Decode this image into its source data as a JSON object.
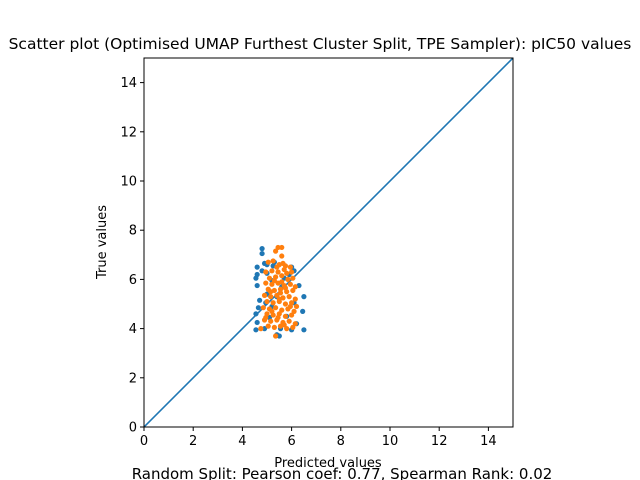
{
  "chart_data": {
    "type": "scatter",
    "title": "Scatter plot (Optimised UMAP Furthest Cluster Split, TPE Sampler): pIC50 values",
    "xlabel": "Predicted values",
    "ylabel": "True values",
    "caption": "Random Split: Pearson coef: 0.77, Spearman Rank: 0.02",
    "xlim": [
      0,
      15
    ],
    "ylim": [
      0,
      15
    ],
    "xticks": [
      "0",
      "2",
      "4",
      "6",
      "8",
      "10",
      "12",
      "14"
    ],
    "yticks": [
      "0",
      "2",
      "4",
      "6",
      "8",
      "10",
      "12",
      "14"
    ],
    "grid": false,
    "legend": "none",
    "reference_line": {
      "x": [
        0,
        15
      ],
      "y": [
        0,
        15
      ],
      "color": "#1f77b4"
    },
    "series": [
      {
        "color": "#1f77b4",
        "points": [
          [
            4.8,
            7.25
          ],
          [
            4.8,
            7.05
          ],
          [
            4.9,
            6.65
          ],
          [
            5.0,
            6.6
          ],
          [
            5.3,
            6.7
          ],
          [
            4.6,
            6.5
          ],
          [
            4.6,
            6.2
          ],
          [
            4.55,
            6.05
          ],
          [
            4.6,
            5.75
          ],
          [
            4.7,
            5.15
          ],
          [
            4.65,
            4.85
          ],
          [
            4.55,
            4.6
          ],
          [
            4.6,
            4.25
          ],
          [
            4.55,
            3.95
          ],
          [
            4.9,
            4.0
          ],
          [
            5.0,
            6.25
          ],
          [
            5.2,
            5.95
          ],
          [
            5.4,
            3.75
          ],
          [
            5.5,
            3.7
          ],
          [
            5.9,
            6.2
          ],
          [
            6.0,
            6.5
          ],
          [
            6.1,
            6.35
          ],
          [
            6.3,
            5.75
          ],
          [
            6.5,
            5.3
          ],
          [
            6.45,
            4.7
          ],
          [
            6.5,
            3.95
          ],
          [
            6.2,
            4.2
          ],
          [
            6.1,
            5.05
          ],
          [
            5.8,
            4.5
          ],
          [
            5.6,
            5.7
          ],
          [
            5.4,
            5.3
          ],
          [
            5.2,
            4.9
          ],
          [
            5.0,
            5.4
          ],
          [
            5.1,
            4.45
          ],
          [
            4.95,
            5.05
          ],
          [
            5.7,
            6.05
          ],
          [
            5.55,
            4.0
          ],
          [
            6.0,
            3.95
          ],
          [
            4.8,
            6.35
          ],
          [
            5.25,
            6.55
          ]
        ]
      },
      {
        "color": "#ff7f0e",
        "points": [
          [
            5.45,
            7.3
          ],
          [
            5.6,
            7.3
          ],
          [
            5.35,
            7.15
          ],
          [
            5.05,
            6.7
          ],
          [
            5.25,
            6.75
          ],
          [
            5.5,
            6.6
          ],
          [
            5.75,
            6.55
          ],
          [
            5.95,
            6.5
          ],
          [
            4.95,
            6.3
          ],
          [
            5.2,
            6.35
          ],
          [
            5.45,
            6.3
          ],
          [
            5.7,
            6.4
          ],
          [
            6.0,
            6.3
          ],
          [
            5.1,
            6.05
          ],
          [
            5.35,
            6.1
          ],
          [
            5.6,
            6.15
          ],
          [
            5.85,
            6.0
          ],
          [
            6.05,
            6.05
          ],
          [
            4.95,
            5.85
          ],
          [
            5.2,
            5.8
          ],
          [
            5.45,
            5.85
          ],
          [
            5.7,
            5.75
          ],
          [
            5.95,
            5.8
          ],
          [
            6.15,
            5.7
          ],
          [
            5.05,
            5.6
          ],
          [
            5.3,
            5.55
          ],
          [
            5.55,
            5.6
          ],
          [
            5.8,
            5.5
          ],
          [
            6.05,
            5.55
          ],
          [
            4.9,
            5.35
          ],
          [
            5.15,
            5.3
          ],
          [
            5.4,
            5.35
          ],
          [
            5.65,
            5.25
          ],
          [
            5.9,
            5.3
          ],
          [
            6.15,
            5.2
          ],
          [
            5.0,
            5.1
          ],
          [
            5.25,
            5.05
          ],
          [
            5.5,
            5.1
          ],
          [
            5.75,
            5.0
          ],
          [
            6.0,
            5.05
          ],
          [
            4.85,
            4.85
          ],
          [
            5.1,
            4.8
          ],
          [
            5.35,
            4.85
          ],
          [
            5.6,
            4.75
          ],
          [
            5.85,
            4.8
          ],
          [
            6.1,
            4.7
          ],
          [
            5.0,
            4.6
          ],
          [
            5.25,
            4.55
          ],
          [
            5.5,
            4.6
          ],
          [
            5.75,
            4.5
          ],
          [
            6.0,
            4.55
          ],
          [
            4.9,
            4.35
          ],
          [
            5.15,
            4.3
          ],
          [
            5.4,
            4.35
          ],
          [
            5.65,
            4.25
          ],
          [
            5.9,
            4.3
          ],
          [
            6.15,
            4.2
          ],
          [
            5.05,
            4.1
          ],
          [
            5.3,
            4.05
          ],
          [
            5.55,
            4.1
          ],
          [
            5.8,
            4.0
          ],
          [
            6.05,
            4.05
          ],
          [
            4.75,
            4.0
          ],
          [
            5.35,
            3.7
          ],
          [
            5.55,
            5.45
          ],
          [
            5.6,
            5.9
          ],
          [
            5.3,
            5.95
          ],
          [
            5.8,
            6.25
          ],
          [
            5.45,
            4.45
          ],
          [
            5.7,
            4.15
          ],
          [
            5.2,
            4.7
          ],
          [
            5.95,
            4.9
          ],
          [
            5.4,
            6.5
          ],
          [
            5.65,
            6.65
          ],
          [
            5.15,
            5.5
          ],
          [
            5.5,
            5.2
          ],
          [
            5.75,
            5.65
          ],
          [
            6.2,
            4.9
          ],
          [
            4.95,
            4.45
          ],
          [
            5.6,
            6.95
          ]
        ]
      }
    ]
  }
}
